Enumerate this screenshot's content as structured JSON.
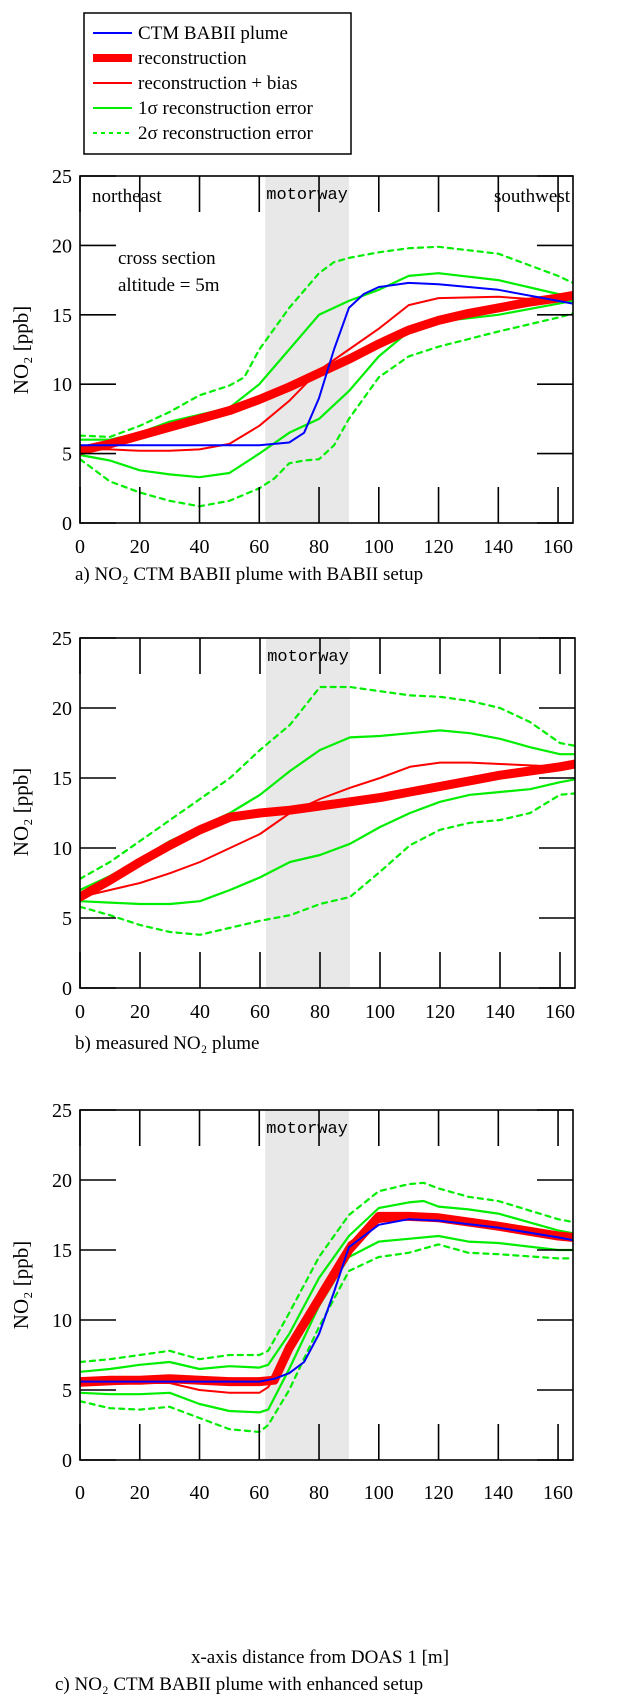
{
  "legend": {
    "items": [
      {
        "label": "CTM BABII plume",
        "color": "#0000ff",
        "style": "solid",
        "width": 2
      },
      {
        "label": "reconstruction",
        "color": "#ff0000",
        "style": "solid",
        "width": 8
      },
      {
        "label": "reconstruction + bias",
        "color": "#ff0000",
        "style": "solid",
        "width": 2
      },
      {
        "label": "1σ reconstruction error",
        "color": "#00ee00",
        "style": "solid",
        "width": 2
      },
      {
        "label": "2σ reconstruction error",
        "color": "#00ee00",
        "style": "dashed",
        "width": 2
      }
    ]
  },
  "colors": {
    "ctm": "#0000ff",
    "reconstruction": "#ff0000",
    "error": "#00ee00",
    "motorway_band": "#e8e8e8"
  },
  "chart_data": [
    {
      "type": "line",
      "caption": "a) NO₂ CTM BABII plume with BABII setup",
      "ylabel": "NO₂ [ppb]",
      "xlabel": "",
      "xlim": [
        0,
        165
      ],
      "ylim": [
        0,
        25
      ],
      "xticks": [
        0,
        20,
        40,
        60,
        80,
        100,
        120,
        140,
        160
      ],
      "yticks": [
        0,
        5,
        10,
        15,
        20,
        25
      ],
      "shaded_region": {
        "label": "motorway",
        "x": [
          62,
          90
        ]
      },
      "annotations": {
        "left": "northeast",
        "right": "southwest",
        "cross_section": "cross section",
        "altitude": "altitude = 5m"
      },
      "series": [
        {
          "name": "2σ reconstruction error",
          "kind": "err2",
          "x": [
            0,
            10,
            20,
            30,
            40,
            50,
            55,
            60,
            70,
            80,
            85,
            90,
            100,
            110,
            120,
            140,
            160,
            165
          ],
          "y": [
            6.3,
            6.2,
            7.0,
            8.0,
            9.2,
            9.9,
            10.5,
            12.5,
            15.5,
            18.0,
            18.8,
            19.1,
            19.5,
            19.8,
            19.9,
            19.4,
            17.8,
            17.3
          ]
        },
        {
          "name": "2σ reconstruction error",
          "kind": "err2",
          "x": [
            0,
            10,
            20,
            30,
            40,
            50,
            60,
            65,
            70,
            75,
            80,
            85,
            90,
            100,
            110,
            120,
            140,
            160,
            165
          ],
          "y": [
            4.6,
            3.0,
            2.2,
            1.6,
            1.2,
            1.6,
            2.5,
            3.2,
            4.3,
            4.5,
            4.6,
            5.6,
            7.5,
            10.5,
            12.0,
            12.7,
            13.8,
            14.8,
            15.1
          ]
        },
        {
          "name": "1σ reconstruction error",
          "kind": "err1",
          "x": [
            0,
            10,
            20,
            30,
            40,
            50,
            60,
            70,
            80,
            90,
            100,
            110,
            120,
            140,
            160,
            165
          ],
          "y": [
            6.0,
            6.0,
            6.5,
            7.3,
            7.8,
            8.3,
            10.0,
            12.5,
            15.0,
            16.0,
            16.8,
            17.8,
            18.0,
            17.5,
            16.5,
            16.3
          ]
        },
        {
          "name": "1σ reconstruction error",
          "kind": "err1",
          "x": [
            0,
            10,
            20,
            30,
            40,
            50,
            60,
            70,
            80,
            90,
            100,
            110,
            120,
            140,
            160,
            165
          ],
          "y": [
            4.9,
            4.5,
            3.8,
            3.5,
            3.3,
            3.6,
            5.0,
            6.5,
            7.5,
            9.5,
            12.0,
            13.8,
            14.5,
            15.0,
            15.8,
            16.0
          ]
        },
        {
          "name": "reconstruction + bias",
          "kind": "bias",
          "x": [
            0,
            10,
            20,
            30,
            40,
            50,
            60,
            70,
            80,
            90,
            100,
            110,
            120,
            140,
            160,
            165
          ],
          "y": [
            5.3,
            5.3,
            5.2,
            5.2,
            5.3,
            5.7,
            7.0,
            8.8,
            11.0,
            12.5,
            14.0,
            15.7,
            16.2,
            16.3,
            16.0,
            16.2
          ]
        },
        {
          "name": "reconstruction",
          "kind": "recon",
          "x": [
            0,
            10,
            20,
            30,
            40,
            50,
            60,
            70,
            80,
            90,
            100,
            110,
            120,
            130,
            140,
            150,
            160,
            165
          ],
          "y": [
            5.2,
            5.7,
            6.3,
            6.9,
            7.5,
            8.1,
            8.9,
            9.8,
            10.8,
            11.8,
            12.9,
            13.9,
            14.6,
            15.1,
            15.5,
            15.9,
            16.2,
            16.4
          ]
        },
        {
          "name": "CTM BABII plume",
          "kind": "ctm",
          "x": [
            0,
            10,
            20,
            30,
            40,
            50,
            60,
            70,
            75,
            80,
            85,
            90,
            95,
            100,
            110,
            120,
            140,
            160,
            165
          ],
          "y": [
            5.6,
            5.6,
            5.6,
            5.6,
            5.6,
            5.6,
            5.6,
            5.8,
            6.5,
            9.0,
            12.5,
            15.5,
            16.5,
            17.0,
            17.3,
            17.2,
            16.8,
            16.0,
            15.8
          ]
        }
      ]
    },
    {
      "type": "line",
      "caption": "b) measured NO₂ plume",
      "ylabel": "NO₂ [ppb]",
      "xlabel": "",
      "xlim": [
        0,
        165
      ],
      "ylim": [
        0,
        25
      ],
      "xticks": [
        0,
        20,
        40,
        60,
        80,
        100,
        120,
        140,
        160
      ],
      "yticks": [
        0,
        5,
        10,
        15,
        20,
        25
      ],
      "shaded_region": {
        "label": "motorway",
        "x": [
          62,
          90
        ]
      },
      "series": [
        {
          "name": "2σ reconstruction error",
          "kind": "err2",
          "x": [
            0,
            10,
            20,
            30,
            40,
            50,
            60,
            70,
            80,
            90,
            100,
            110,
            120,
            130,
            140,
            150,
            160,
            165
          ],
          "y": [
            7.8,
            9.0,
            10.5,
            12.0,
            13.5,
            15.0,
            17.0,
            18.8,
            21.5,
            21.5,
            21.2,
            20.9,
            20.8,
            20.5,
            20.0,
            19.0,
            17.5,
            17.3
          ]
        },
        {
          "name": "2σ reconstruction error",
          "kind": "err2",
          "x": [
            0,
            10,
            20,
            30,
            40,
            50,
            60,
            70,
            80,
            90,
            100,
            110,
            120,
            130,
            140,
            150,
            160,
            165
          ],
          "y": [
            5.8,
            5.2,
            4.5,
            4.0,
            3.8,
            4.3,
            4.8,
            5.2,
            6.0,
            6.5,
            8.3,
            10.2,
            11.3,
            11.8,
            12.0,
            12.5,
            13.8,
            13.9
          ]
        },
        {
          "name": "1σ reconstruction error",
          "kind": "err1",
          "x": [
            0,
            10,
            20,
            30,
            40,
            50,
            60,
            70,
            80,
            90,
            100,
            110,
            120,
            130,
            140,
            150,
            160,
            165
          ],
          "y": [
            7.0,
            8.0,
            9.2,
            10.5,
            11.5,
            12.5,
            13.8,
            15.5,
            17.0,
            17.9,
            18.0,
            18.2,
            18.4,
            18.2,
            17.8,
            17.2,
            16.7,
            16.7
          ]
        },
        {
          "name": "1σ reconstruction error",
          "kind": "err1",
          "x": [
            0,
            10,
            20,
            30,
            40,
            50,
            60,
            70,
            80,
            90,
            100,
            110,
            120,
            130,
            140,
            150,
            160,
            165
          ],
          "y": [
            6.2,
            6.1,
            6.0,
            6.0,
            6.2,
            7.0,
            7.9,
            9.0,
            9.5,
            10.3,
            11.5,
            12.5,
            13.3,
            13.8,
            14.0,
            14.2,
            14.7,
            14.9
          ]
        },
        {
          "name": "reconstruction + bias",
          "kind": "bias",
          "x": [
            0,
            10,
            20,
            30,
            40,
            50,
            60,
            70,
            80,
            90,
            100,
            110,
            120,
            130,
            140,
            150,
            160,
            165
          ],
          "y": [
            6.5,
            7.0,
            7.5,
            8.2,
            9.0,
            10.0,
            11.0,
            12.5,
            13.5,
            14.3,
            15.0,
            15.8,
            16.1,
            16.1,
            16.0,
            15.9,
            15.8,
            15.8
          ]
        },
        {
          "name": "reconstruction",
          "kind": "recon",
          "x": [
            0,
            10,
            20,
            30,
            40,
            50,
            60,
            70,
            80,
            90,
            100,
            110,
            120,
            130,
            140,
            150,
            160,
            165
          ],
          "y": [
            6.5,
            7.7,
            9.0,
            10.2,
            11.3,
            12.2,
            12.5,
            12.7,
            13.0,
            13.3,
            13.6,
            14.0,
            14.4,
            14.8,
            15.2,
            15.5,
            15.8,
            16.0
          ]
        }
      ]
    },
    {
      "type": "line",
      "caption": "c) NO₂ CTM BABII plume with enhanced setup",
      "ylabel": "NO₂ [ppb]",
      "xlabel": "x-axis distance from DOAS 1 [m]",
      "xlim": [
        0,
        165
      ],
      "ylim": [
        0,
        25
      ],
      "xticks": [
        0,
        20,
        40,
        60,
        80,
        100,
        120,
        140,
        160
      ],
      "yticks": [
        0,
        5,
        10,
        15,
        20,
        25
      ],
      "shaded_region": {
        "label": "motorway",
        "x": [
          62,
          90
        ]
      },
      "series": [
        {
          "name": "2σ reconstruction error",
          "kind": "err2",
          "x": [
            0,
            10,
            20,
            30,
            40,
            50,
            60,
            63,
            70,
            80,
            90,
            100,
            110,
            115,
            120,
            130,
            140,
            160,
            165
          ],
          "y": [
            7.0,
            7.2,
            7.5,
            7.8,
            7.2,
            7.5,
            7.5,
            7.8,
            10.5,
            14.5,
            17.5,
            19.2,
            19.7,
            19.8,
            19.4,
            18.8,
            18.5,
            17.2,
            17.0
          ]
        },
        {
          "name": "2σ reconstruction error",
          "kind": "err2",
          "x": [
            0,
            10,
            20,
            30,
            40,
            50,
            60,
            63,
            70,
            80,
            90,
            100,
            110,
            120,
            130,
            140,
            160,
            165
          ],
          "y": [
            4.2,
            3.7,
            3.6,
            3.8,
            3.0,
            2.2,
            2.0,
            2.5,
            5.0,
            9.5,
            13.5,
            14.5,
            14.8,
            15.4,
            14.8,
            14.7,
            14.4,
            14.4
          ]
        },
        {
          "name": "1σ reconstruction error",
          "kind": "err1",
          "x": [
            0,
            10,
            20,
            30,
            40,
            50,
            60,
            63,
            70,
            80,
            90,
            100,
            110,
            115,
            120,
            130,
            140,
            160,
            165
          ],
          "y": [
            6.3,
            6.5,
            6.8,
            7.0,
            6.5,
            6.7,
            6.6,
            6.8,
            9.0,
            13.0,
            16.0,
            18.0,
            18.4,
            18.5,
            18.1,
            17.9,
            17.6,
            16.4,
            16.2
          ]
        },
        {
          "name": "1σ reconstruction error",
          "kind": "err1",
          "x": [
            0,
            10,
            20,
            30,
            40,
            50,
            60,
            63,
            70,
            80,
            90,
            100,
            110,
            120,
            130,
            140,
            160,
            165
          ],
          "y": [
            4.8,
            4.7,
            4.7,
            4.8,
            4.0,
            3.5,
            3.4,
            3.6,
            6.5,
            11.0,
            14.5,
            15.6,
            15.8,
            16.0,
            15.6,
            15.5,
            15.0,
            15.0
          ]
        },
        {
          "name": "reconstruction + bias",
          "kind": "bias",
          "x": [
            0,
            10,
            20,
            30,
            40,
            50,
            60,
            63,
            70,
            80,
            90,
            100,
            110,
            120,
            140,
            160,
            165
          ],
          "y": [
            5.3,
            5.4,
            5.5,
            5.5,
            5.0,
            4.8,
            4.8,
            5.2,
            7.5,
            12.0,
            15.5,
            17.0,
            17.2,
            17.1,
            16.5,
            15.9,
            15.7
          ]
        },
        {
          "name": "reconstruction",
          "kind": "recon",
          "x": [
            0,
            10,
            20,
            30,
            40,
            50,
            60,
            65,
            70,
            80,
            90,
            100,
            110,
            120,
            140,
            160,
            165
          ],
          "y": [
            5.6,
            5.7,
            5.7,
            5.8,
            5.7,
            5.6,
            5.6,
            5.7,
            8.0,
            11.5,
            15.0,
            17.4,
            17.4,
            17.3,
            16.7,
            16.0,
            15.9
          ]
        },
        {
          "name": "CTM BABII plume",
          "kind": "ctm",
          "x": [
            0,
            10,
            20,
            30,
            40,
            50,
            60,
            65,
            70,
            75,
            80,
            85,
            90,
            100,
            110,
            120,
            140,
            160,
            165
          ],
          "y": [
            5.6,
            5.6,
            5.6,
            5.6,
            5.6,
            5.6,
            5.6,
            5.8,
            6.2,
            7.0,
            9.0,
            12.0,
            15.2,
            16.8,
            17.2,
            17.1,
            16.6,
            15.9,
            15.7
          ]
        }
      ]
    }
  ]
}
